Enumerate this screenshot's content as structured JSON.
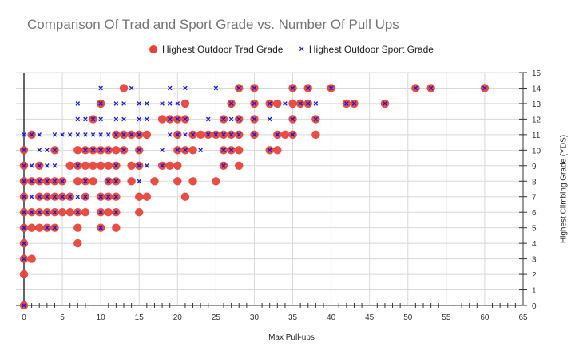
{
  "chart_data": {
    "type": "scatter",
    "title": "Comparison Of Trad and Sport Grade vs. Number Of Pull Ups",
    "xlabel": "Max Pull-ups",
    "ylabel": "Highest Climbing Grade (YDS)",
    "xlim": [
      0,
      65
    ],
    "ylim": [
      0,
      15
    ],
    "x_ticks": [
      0,
      5,
      10,
      15,
      20,
      25,
      30,
      35,
      40,
      45,
      50,
      55,
      60,
      65
    ],
    "y_ticks": [
      0,
      1,
      2,
      3,
      4,
      5,
      6,
      7,
      8,
      9,
      10,
      11,
      12,
      13,
      14,
      15
    ],
    "grid": true,
    "legend_position": "top",
    "series": [
      {
        "name": "Highest Outdoor Trad Grade",
        "color": "#e8433a",
        "marker": "circle",
        "points": [
          [
            13,
            14
          ],
          [
            28,
            14
          ],
          [
            30,
            14
          ],
          [
            35,
            14
          ],
          [
            37,
            14
          ],
          [
            40,
            14
          ],
          [
            51,
            14
          ],
          [
            53,
            14
          ],
          [
            60,
            14
          ],
          [
            10,
            13
          ],
          [
            21,
            13
          ],
          [
            27,
            13
          ],
          [
            30,
            13
          ],
          [
            32,
            13
          ],
          [
            33,
            13
          ],
          [
            35,
            13
          ],
          [
            36,
            13
          ],
          [
            37,
            13
          ],
          [
            42,
            13
          ],
          [
            43,
            13
          ],
          [
            47,
            13
          ],
          [
            9,
            12
          ],
          [
            18,
            12
          ],
          [
            19,
            12
          ],
          [
            20,
            12
          ],
          [
            21,
            12
          ],
          [
            26,
            12
          ],
          [
            28,
            12
          ],
          [
            30,
            12
          ],
          [
            35,
            12
          ],
          [
            38,
            12
          ],
          [
            1,
            11
          ],
          [
            12,
            11
          ],
          [
            13,
            11
          ],
          [
            14,
            11
          ],
          [
            15,
            11
          ],
          [
            16,
            11
          ],
          [
            20,
            11
          ],
          [
            22,
            11
          ],
          [
            23,
            11
          ],
          [
            24,
            11
          ],
          [
            25,
            11
          ],
          [
            26,
            11
          ],
          [
            27,
            11
          ],
          [
            28,
            11
          ],
          [
            30,
            11
          ],
          [
            33,
            11
          ],
          [
            34,
            11
          ],
          [
            35,
            11
          ],
          [
            38,
            11
          ],
          [
            0,
            10
          ],
          [
            4,
            10
          ],
          [
            7,
            10
          ],
          [
            8,
            10
          ],
          [
            9,
            10
          ],
          [
            10,
            10
          ],
          [
            11,
            10
          ],
          [
            12,
            10
          ],
          [
            13,
            10
          ],
          [
            15,
            10
          ],
          [
            20,
            10
          ],
          [
            21,
            10
          ],
          [
            22,
            10
          ],
          [
            26,
            10
          ],
          [
            27,
            10
          ],
          [
            28,
            10
          ],
          [
            32,
            10
          ],
          [
            33,
            10
          ],
          [
            0,
            9
          ],
          [
            2,
            9
          ],
          [
            6,
            9
          ],
          [
            7,
            9
          ],
          [
            8,
            9
          ],
          [
            9,
            9
          ],
          [
            10,
            9
          ],
          [
            11,
            9
          ],
          [
            12,
            9
          ],
          [
            14,
            9
          ],
          [
            15,
            9
          ],
          [
            18,
            9
          ],
          [
            19,
            9
          ],
          [
            20,
            9
          ],
          [
            26,
            9
          ],
          [
            28,
            9
          ],
          [
            0,
            8
          ],
          [
            1,
            8
          ],
          [
            2,
            8
          ],
          [
            3,
            8
          ],
          [
            4,
            8
          ],
          [
            5,
            8
          ],
          [
            7,
            8
          ],
          [
            8,
            8
          ],
          [
            9,
            8
          ],
          [
            11,
            8
          ],
          [
            12,
            8
          ],
          [
            14,
            8
          ],
          [
            17,
            8
          ],
          [
            20,
            8
          ],
          [
            22,
            8
          ],
          [
            25,
            8
          ],
          [
            0,
            7
          ],
          [
            2,
            7
          ],
          [
            3,
            7
          ],
          [
            4,
            7
          ],
          [
            5,
            7
          ],
          [
            6,
            7
          ],
          [
            8,
            7
          ],
          [
            10,
            7
          ],
          [
            11,
            7
          ],
          [
            12,
            7
          ],
          [
            15,
            7
          ],
          [
            16,
            7
          ],
          [
            21,
            7
          ],
          [
            0,
            6
          ],
          [
            1,
            6
          ],
          [
            2,
            6
          ],
          [
            3,
            6
          ],
          [
            4,
            6
          ],
          [
            5,
            6
          ],
          [
            6,
            6
          ],
          [
            7,
            6
          ],
          [
            8,
            6
          ],
          [
            10,
            6
          ],
          [
            11,
            6
          ],
          [
            12,
            6
          ],
          [
            15,
            6
          ],
          [
            0,
            5
          ],
          [
            1,
            5
          ],
          [
            2,
            5
          ],
          [
            3,
            5
          ],
          [
            4,
            5
          ],
          [
            7,
            5
          ],
          [
            10,
            5
          ],
          [
            12,
            5
          ],
          [
            0,
            4
          ],
          [
            7,
            4
          ],
          [
            0,
            3
          ],
          [
            1,
            3
          ],
          [
            0,
            2
          ],
          [
            0,
            0
          ]
        ]
      },
      {
        "name": "Highest Outdoor Sport Grade",
        "color": "#1a1adb",
        "marker": "x",
        "points": [
          [
            10,
            14
          ],
          [
            14,
            14
          ],
          [
            19,
            14
          ],
          [
            21,
            14
          ],
          [
            25,
            14
          ],
          [
            28,
            14
          ],
          [
            30,
            14
          ],
          [
            35,
            14
          ],
          [
            37,
            14
          ],
          [
            40,
            14
          ],
          [
            51,
            14
          ],
          [
            53,
            14
          ],
          [
            60,
            14
          ],
          [
            7,
            13
          ],
          [
            10,
            13
          ],
          [
            12,
            13
          ],
          [
            13,
            13
          ],
          [
            15,
            13
          ],
          [
            16,
            13
          ],
          [
            18,
            13
          ],
          [
            19,
            13
          ],
          [
            20,
            13
          ],
          [
            27,
            13
          ],
          [
            30,
            13
          ],
          [
            32,
            13
          ],
          [
            34,
            13
          ],
          [
            36,
            13
          ],
          [
            37,
            13
          ],
          [
            38,
            13
          ],
          [
            42,
            13
          ],
          [
            43,
            13
          ],
          [
            47,
            13
          ],
          [
            7,
            12
          ],
          [
            8,
            12
          ],
          [
            9,
            12
          ],
          [
            10,
            12
          ],
          [
            12,
            12
          ],
          [
            13,
            12
          ],
          [
            15,
            12
          ],
          [
            16,
            12
          ],
          [
            19,
            12
          ],
          [
            20,
            12
          ],
          [
            21,
            12
          ],
          [
            24,
            12
          ],
          [
            26,
            12
          ],
          [
            27,
            12
          ],
          [
            28,
            12
          ],
          [
            30,
            12
          ],
          [
            32,
            12
          ],
          [
            35,
            12
          ],
          [
            38,
            12
          ],
          [
            0,
            11
          ],
          [
            1,
            11
          ],
          [
            2,
            11
          ],
          [
            4,
            11
          ],
          [
            5,
            11
          ],
          [
            6,
            11
          ],
          [
            7,
            11
          ],
          [
            8,
            11
          ],
          [
            9,
            11
          ],
          [
            10,
            11
          ],
          [
            11,
            11
          ],
          [
            12,
            11
          ],
          [
            13,
            11
          ],
          [
            14,
            11
          ],
          [
            15,
            11
          ],
          [
            19,
            11
          ],
          [
            20,
            11
          ],
          [
            21,
            11
          ],
          [
            22,
            11
          ],
          [
            24,
            11
          ],
          [
            25,
            11
          ],
          [
            26,
            11
          ],
          [
            27,
            11
          ],
          [
            28,
            11
          ],
          [
            30,
            11
          ],
          [
            33,
            11
          ],
          [
            35,
            11
          ],
          [
            0,
            10
          ],
          [
            2,
            10
          ],
          [
            3,
            10
          ],
          [
            4,
            10
          ],
          [
            8,
            10
          ],
          [
            9,
            10
          ],
          [
            10,
            10
          ],
          [
            11,
            10
          ],
          [
            13,
            10
          ],
          [
            15,
            10
          ],
          [
            18,
            10
          ],
          [
            20,
            10
          ],
          [
            21,
            10
          ],
          [
            23,
            10
          ],
          [
            26,
            10
          ],
          [
            27,
            10
          ],
          [
            32,
            10
          ],
          [
            0,
            9
          ],
          [
            1,
            9
          ],
          [
            2,
            9
          ],
          [
            3,
            9
          ],
          [
            4,
            9
          ],
          [
            7,
            9
          ],
          [
            12,
            9
          ],
          [
            15,
            9
          ],
          [
            16,
            9
          ],
          [
            18,
            9
          ],
          [
            26,
            9
          ],
          [
            0,
            8
          ],
          [
            1,
            8
          ],
          [
            2,
            8
          ],
          [
            3,
            8
          ],
          [
            4,
            8
          ],
          [
            5,
            8
          ],
          [
            8,
            8
          ],
          [
            11,
            8
          ],
          [
            12,
            8
          ],
          [
            15,
            8
          ],
          [
            0,
            7
          ],
          [
            1,
            7
          ],
          [
            2,
            7
          ],
          [
            3,
            7
          ],
          [
            4,
            7
          ],
          [
            5,
            7
          ],
          [
            6,
            7
          ],
          [
            7,
            7
          ],
          [
            8,
            7
          ],
          [
            10,
            7
          ],
          [
            11,
            7
          ],
          [
            12,
            7
          ],
          [
            0,
            6
          ],
          [
            1,
            6
          ],
          [
            2,
            6
          ],
          [
            3,
            6
          ],
          [
            4,
            6
          ],
          [
            7,
            6
          ],
          [
            10,
            6
          ],
          [
            12,
            6
          ],
          [
            0,
            5
          ],
          [
            3,
            5
          ],
          [
            4,
            5
          ],
          [
            10,
            5
          ],
          [
            0,
            4
          ],
          [
            0,
            3
          ],
          [
            0,
            0
          ]
        ]
      }
    ]
  }
}
